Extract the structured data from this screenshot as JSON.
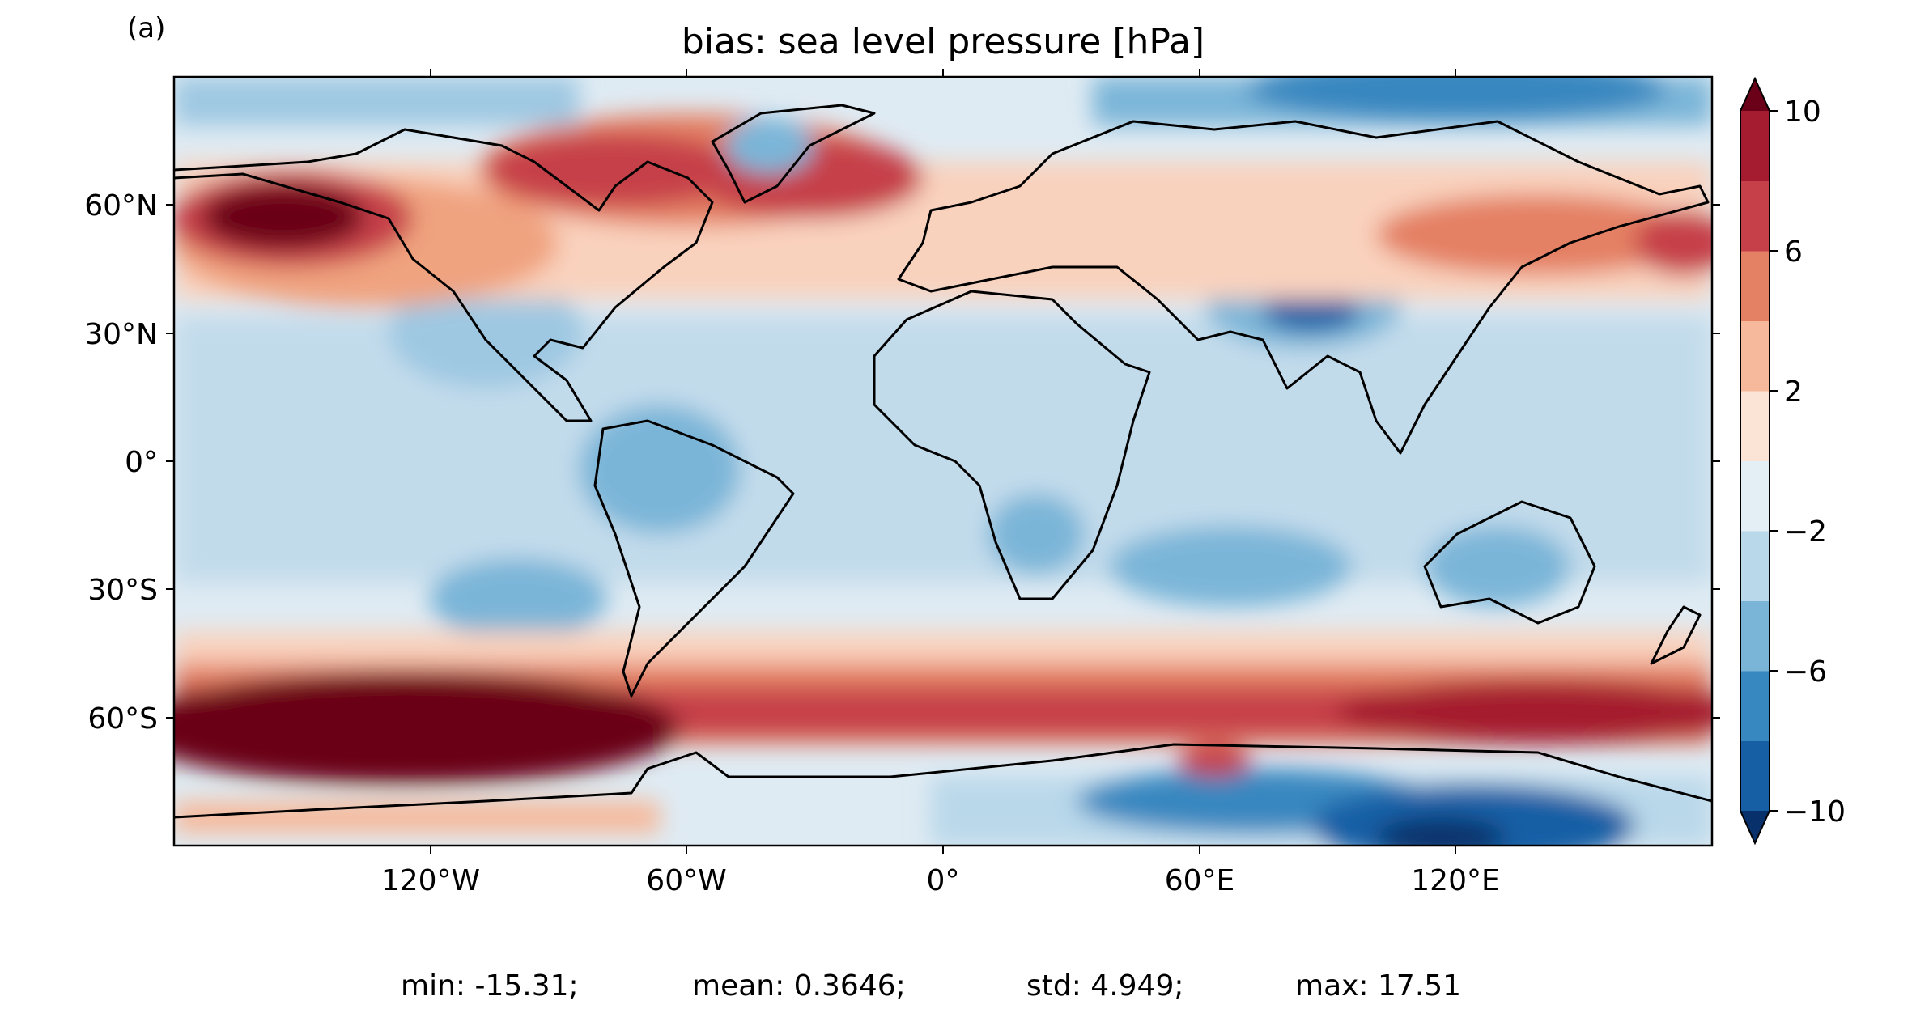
{
  "panel_label": "(a)",
  "title": "bias: sea level pressure [hPa]",
  "map": {
    "lon_ticks": [
      "120°W",
      "60°W",
      "0°",
      "60°E",
      "120°E"
    ],
    "lat_ticks": [
      "60°N",
      "30°N",
      "0°",
      "30°S",
      "60°S"
    ],
    "lon_range": [
      -180,
      180
    ],
    "lat_range": [
      -90,
      90
    ],
    "projection": "PlateCarree",
    "coastlines": true
  },
  "colorbar": {
    "levels": [
      -10,
      -8,
      -6,
      -4,
      -2,
      0,
      2,
      4,
      6,
      8,
      10
    ],
    "tick_labels": [
      "10",
      "6",
      "2",
      "−2",
      "−6",
      "−10"
    ],
    "extend": "both",
    "colors": [
      "#08306b",
      "#175fa5",
      "#3787c0",
      "#7ab5d8",
      "#b9d8ea",
      "#e3eef5",
      "#fbe3d6",
      "#f6b99b",
      "#e48064",
      "#c6404a",
      "#a51b2f",
      "#6b0019"
    ]
  },
  "stats": {
    "min": "min: -15.31;",
    "mean": "mean: 0.3646;",
    "std": "std: 4.949;",
    "max": "max: 17.51"
  }
}
